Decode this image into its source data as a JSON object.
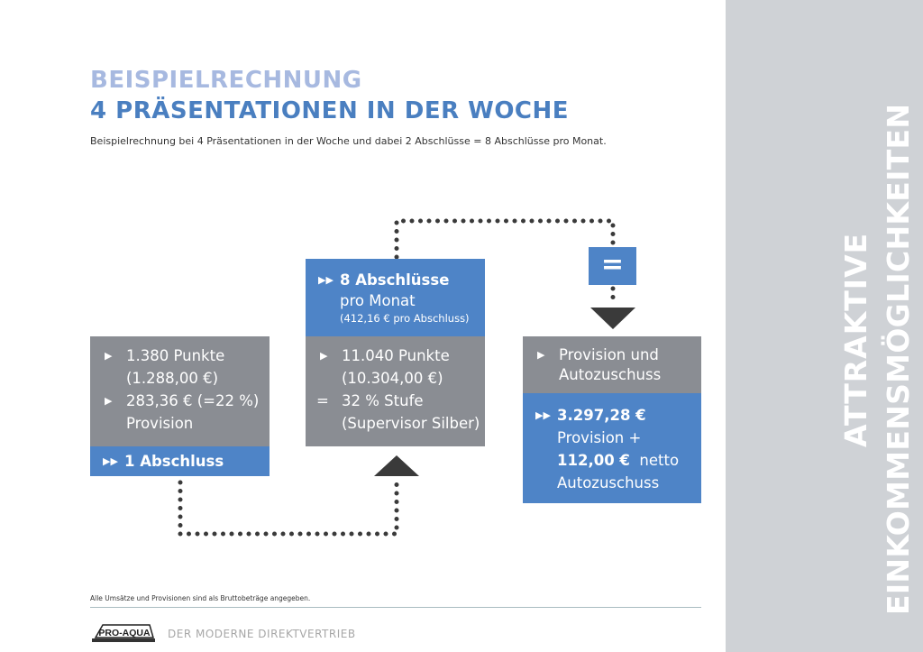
{
  "header": {
    "title_line1": "BEISPIELRECHNUNG",
    "title_line2": "4 PRÄSENTATIONEN IN DER WOCHE",
    "subtitle": "Beispielrechnung bei 4 Präsentationen in der Woche und dabei 2 Abschlüsse = 8 Abschlüsse pro Monat."
  },
  "left_box": {
    "line1": "1.380 Punkte",
    "line2": "(1.288,00 €)",
    "line3": "283,36 €  (=22 %)",
    "line4": "Provision",
    "footer": "1 Abschluss"
  },
  "middle_box": {
    "head1": "8 Abschlüsse",
    "head2": "pro Monat",
    "head3": "(412,16 € pro Abschluss)",
    "line1": "11.040 Punkte",
    "line2": "(10.304,00 €)",
    "eq_sign": "=",
    "line3": "32 % Stufe",
    "line4": "(Supervisor Silber)"
  },
  "equals_box": {
    "label": "="
  },
  "right_box": {
    "head1": "Provision und",
    "head2": "Autozuschuss",
    "line1": "3.297,28 €",
    "line2": "Provision +",
    "line3_bold": "112,00 €",
    "line3_rest": "netto",
    "line4": "Autozuschuss"
  },
  "sidebar": {
    "line1": "ATTRAKTIVE",
    "line2": "EINKOMMENSMÖGLICHKEITEN"
  },
  "footer": {
    "note": "Alle Umsätze und Provisionen sind als Bruttobeträge angegeben.",
    "logo": "PRO-AQUA",
    "tagline": "DER MODERNE DIREKTVERTRIEB"
  },
  "icons": {
    "bullet": "triangle-right-icon",
    "double_bullet": "double-triangle-right-icon"
  },
  "colors": {
    "blue": "#4e84c7",
    "light_blue": "#a7b9e0",
    "gray": "#8a8d93",
    "sidebar": "#cfd2d6"
  }
}
